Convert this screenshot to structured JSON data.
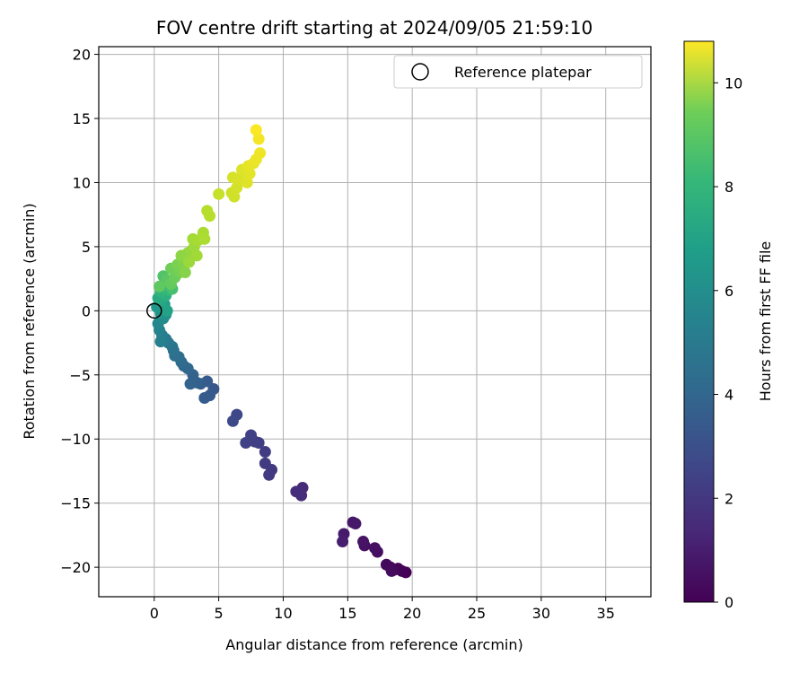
{
  "chart_data": {
    "type": "scatter",
    "title": "FOV centre drift starting at 2024/09/05 21:59:10",
    "xlabel": "Angular distance from reference (arcmin)",
    "ylabel": "Rotation from reference (arcmin)",
    "xlim": [
      -4.3,
      38.5
    ],
    "ylim": [
      -22.3,
      20.6
    ],
    "xticks": [
      0,
      5,
      10,
      15,
      20,
      25,
      30,
      35
    ],
    "yticks": [
      -20,
      -15,
      -10,
      -5,
      0,
      5,
      10,
      15,
      20
    ],
    "grid": true,
    "legend": {
      "position": "top-right",
      "entries": [
        "Reference platepar"
      ]
    },
    "colorbar": {
      "label": "Hours from first FF file",
      "colormap": "viridis",
      "range": [
        0,
        10.8
      ],
      "ticks": [
        0,
        2,
        4,
        6,
        8,
        10
      ]
    },
    "reference_point": {
      "x": 0,
      "y": 0,
      "label": "Reference platepar"
    },
    "points": [
      {
        "x": 19.5,
        "y": -20.4,
        "c": 0.0
      },
      {
        "x": 19.2,
        "y": -20.3,
        "c": 0.05
      },
      {
        "x": 18.9,
        "y": -20.1,
        "c": 0.1
      },
      {
        "x": 18.6,
        "y": -20.2,
        "c": 0.15
      },
      {
        "x": 18.3,
        "y": -20.0,
        "c": 0.2
      },
      {
        "x": 18.0,
        "y": -19.8,
        "c": 0.25
      },
      {
        "x": 18.4,
        "y": -20.3,
        "c": 0.3
      },
      {
        "x": 17.3,
        "y": -18.8,
        "c": 0.4
      },
      {
        "x": 17.1,
        "y": -18.5,
        "c": 0.45
      },
      {
        "x": 16.3,
        "y": -18.3,
        "c": 0.5
      },
      {
        "x": 16.2,
        "y": -18.0,
        "c": 0.55
      },
      {
        "x": 15.6,
        "y": -16.6,
        "c": 0.65
      },
      {
        "x": 15.4,
        "y": -16.5,
        "c": 0.7
      },
      {
        "x": 14.7,
        "y": -17.4,
        "c": 0.8
      },
      {
        "x": 14.6,
        "y": -18.0,
        "c": 0.85
      },
      {
        "x": 11.5,
        "y": -13.8,
        "c": 1.3
      },
      {
        "x": 11.4,
        "y": -14.4,
        "c": 1.35
      },
      {
        "x": 11.0,
        "y": -14.1,
        "c": 1.4
      },
      {
        "x": 9.1,
        "y": -12.4,
        "c": 1.8
      },
      {
        "x": 8.9,
        "y": -12.8,
        "c": 1.85
      },
      {
        "x": 8.6,
        "y": -11.9,
        "c": 1.9
      },
      {
        "x": 8.6,
        "y": -11.0,
        "c": 1.95
      },
      {
        "x": 8.1,
        "y": -10.3,
        "c": 2.0
      },
      {
        "x": 7.8,
        "y": -10.2,
        "c": 2.05
      },
      {
        "x": 7.5,
        "y": -9.7,
        "c": 2.1
      },
      {
        "x": 7.1,
        "y": -10.3,
        "c": 2.15
      },
      {
        "x": 6.4,
        "y": -8.1,
        "c": 2.35
      },
      {
        "x": 6.1,
        "y": -8.6,
        "c": 2.4
      },
      {
        "x": 4.6,
        "y": -6.1,
        "c": 3.0
      },
      {
        "x": 4.3,
        "y": -6.6,
        "c": 3.05
      },
      {
        "x": 4.1,
        "y": -5.5,
        "c": 3.1
      },
      {
        "x": 3.9,
        "y": -6.8,
        "c": 3.15
      },
      {
        "x": 3.6,
        "y": -5.7,
        "c": 3.2
      },
      {
        "x": 3.3,
        "y": -5.6,
        "c": 3.3
      },
      {
        "x": 3.0,
        "y": -5.0,
        "c": 3.4
      },
      {
        "x": 2.8,
        "y": -5.7,
        "c": 3.45
      },
      {
        "x": 2.6,
        "y": -4.5,
        "c": 3.55
      },
      {
        "x": 2.3,
        "y": -4.3,
        "c": 3.65
      },
      {
        "x": 2.1,
        "y": -4.0,
        "c": 3.75
      },
      {
        "x": 1.9,
        "y": -3.6,
        "c": 3.85
      },
      {
        "x": 1.6,
        "y": -3.5,
        "c": 3.95
      },
      {
        "x": 1.5,
        "y": -3.1,
        "c": 4.05
      },
      {
        "x": 1.4,
        "y": -2.8,
        "c": 4.15
      },
      {
        "x": 1.1,
        "y": -2.5,
        "c": 4.3
      },
      {
        "x": 0.9,
        "y": -2.2,
        "c": 4.45
      },
      {
        "x": 0.6,
        "y": -1.9,
        "c": 4.6
      },
      {
        "x": 0.5,
        "y": -2.4,
        "c": 4.7
      },
      {
        "x": 0.4,
        "y": -1.5,
        "c": 4.85
      },
      {
        "x": 0.3,
        "y": -1.0,
        "c": 5.0
      },
      {
        "x": 0.7,
        "y": -0.6,
        "c": 5.2
      },
      {
        "x": 0.9,
        "y": -0.3,
        "c": 5.4
      },
      {
        "x": 0.5,
        "y": -0.2,
        "c": 5.6
      },
      {
        "x": 0.2,
        "y": 0.3,
        "c": 5.8
      },
      {
        "x": 0.8,
        "y": 0.5,
        "c": 6.0
      },
      {
        "x": 1.0,
        "y": 0.0,
        "c": 6.2
      },
      {
        "x": 0.6,
        "y": 0.8,
        "c": 6.4
      },
      {
        "x": 0.3,
        "y": 1.0,
        "c": 6.6
      },
      {
        "x": 0.9,
        "y": 1.2,
        "c": 6.8
      },
      {
        "x": 0.5,
        "y": 1.5,
        "c": 7.0
      },
      {
        "x": 1.1,
        "y": 1.6,
        "c": 7.2
      },
      {
        "x": 0.7,
        "y": 2.0,
        "c": 7.4
      },
      {
        "x": 1.4,
        "y": 1.7,
        "c": 7.6
      },
      {
        "x": 0.7,
        "y": 2.7,
        "c": 7.8
      },
      {
        "x": 1.0,
        "y": 2.4,
        "c": 8.0
      },
      {
        "x": 0.4,
        "y": 1.9,
        "c": 8.1
      },
      {
        "x": 1.3,
        "y": 2.1,
        "c": 8.2
      },
      {
        "x": 1.6,
        "y": 2.6,
        "c": 8.3
      },
      {
        "x": 1.3,
        "y": 3.3,
        "c": 8.4
      },
      {
        "x": 2.0,
        "y": 3.0,
        "c": 8.5
      },
      {
        "x": 1.8,
        "y": 3.6,
        "c": 8.6
      },
      {
        "x": 2.2,
        "y": 3.8,
        "c": 8.7
      },
      {
        "x": 2.4,
        "y": 3.0,
        "c": 8.8
      },
      {
        "x": 2.1,
        "y": 4.3,
        "c": 8.9
      },
      {
        "x": 2.6,
        "y": 4.5,
        "c": 9.0
      },
      {
        "x": 2.9,
        "y": 4.7,
        "c": 9.1
      },
      {
        "x": 2.7,
        "y": 3.8,
        "c": 9.15
      },
      {
        "x": 3.1,
        "y": 5.0,
        "c": 9.2
      },
      {
        "x": 3.3,
        "y": 4.3,
        "c": 9.25
      },
      {
        "x": 3.0,
        "y": 5.6,
        "c": 9.3
      },
      {
        "x": 3.4,
        "y": 5.5,
        "c": 9.35
      },
      {
        "x": 3.8,
        "y": 6.1,
        "c": 9.4
      },
      {
        "x": 3.9,
        "y": 5.6,
        "c": 9.45
      },
      {
        "x": 4.1,
        "y": 7.8,
        "c": 9.6
      },
      {
        "x": 4.3,
        "y": 7.4,
        "c": 9.65
      },
      {
        "x": 5.0,
        "y": 9.1,
        "c": 9.9
      },
      {
        "x": 6.0,
        "y": 9.2,
        "c": 10.0
      },
      {
        "x": 6.2,
        "y": 8.9,
        "c": 10.05
      },
      {
        "x": 6.4,
        "y": 9.6,
        "c": 10.1
      },
      {
        "x": 6.1,
        "y": 10.4,
        "c": 10.15
      },
      {
        "x": 6.6,
        "y": 10.3,
        "c": 10.2
      },
      {
        "x": 6.8,
        "y": 11.0,
        "c": 10.25
      },
      {
        "x": 7.2,
        "y": 10.0,
        "c": 10.3
      },
      {
        "x": 7.4,
        "y": 10.7,
        "c": 10.35
      },
      {
        "x": 7.3,
        "y": 11.3,
        "c": 10.4
      },
      {
        "x": 7.7,
        "y": 11.5,
        "c": 10.45
      },
      {
        "x": 7.9,
        "y": 11.8,
        "c": 10.5
      },
      {
        "x": 8.2,
        "y": 12.3,
        "c": 10.55
      },
      {
        "x": 8.1,
        "y": 13.4,
        "c": 10.65
      },
      {
        "x": 7.9,
        "y": 14.1,
        "c": 10.75
      }
    ]
  }
}
